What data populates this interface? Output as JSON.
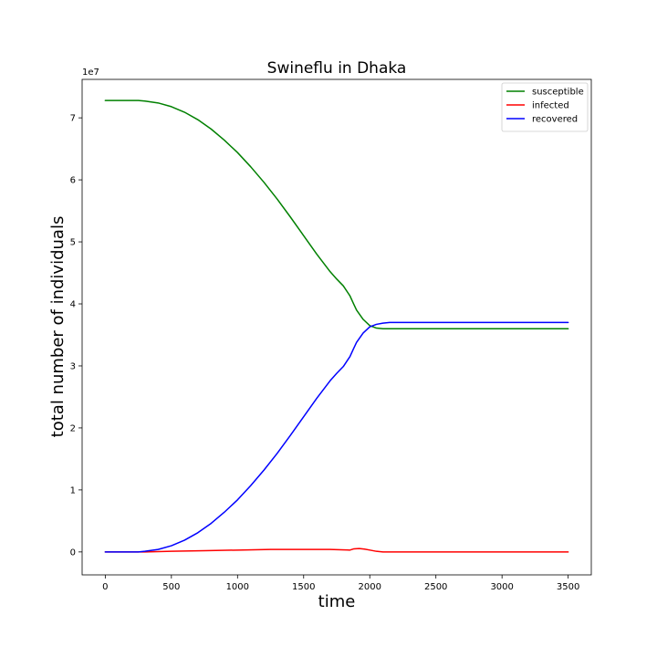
{
  "chart_data": {
    "type": "line",
    "title": "Swineflu in Dhaka",
    "xlabel": "time",
    "ylabel": "total number of individuals",
    "y_offset_label": "1e7",
    "y_scale": 10000000,
    "xlim": [
      -175,
      3675
    ],
    "ylim": [
      -0.37,
      7.62
    ],
    "x_ticks": [
      0,
      500,
      1000,
      1500,
      2000,
      2500,
      3000,
      3500
    ],
    "y_ticks": [
      0,
      1,
      2,
      3,
      4,
      5,
      6,
      7
    ],
    "grid": false,
    "legend_position": "top-right",
    "series": [
      {
        "name": "susceptible",
        "color": "#008000",
        "x": [
          0,
          100,
          200,
          250,
          300,
          400,
          500,
          600,
          700,
          800,
          900,
          1000,
          1100,
          1200,
          1300,
          1400,
          1500,
          1600,
          1700,
          1750,
          1800,
          1850,
          1880,
          1900,
          1950,
          2000,
          2050,
          2100,
          2150,
          2200,
          2300,
          2500,
          3000,
          3500
        ],
        "y": [
          7.28,
          7.28,
          7.28,
          7.28,
          7.27,
          7.24,
          7.18,
          7.09,
          6.97,
          6.82,
          6.64,
          6.44,
          6.21,
          5.96,
          5.69,
          5.4,
          5.1,
          4.8,
          4.52,
          4.4,
          4.29,
          4.13,
          3.99,
          3.9,
          3.75,
          3.65,
          3.61,
          3.6,
          3.6,
          3.6,
          3.6,
          3.6,
          3.6,
          3.6
        ]
      },
      {
        "name": "infected",
        "color": "#ff0000",
        "x": [
          0,
          200,
          300,
          500,
          750,
          1000,
          1250,
          1500,
          1600,
          1700,
          1850,
          1880,
          1920,
          1960,
          2000,
          2050,
          2100,
          2200,
          2500,
          3000,
          3500
        ],
        "y": [
          0.0,
          0.0,
          0.0,
          0.01,
          0.02,
          0.03,
          0.04,
          0.04,
          0.04,
          0.04,
          0.03,
          0.05,
          0.055,
          0.045,
          0.03,
          0.01,
          0.0,
          0.0,
          0.0,
          0.0,
          0.0
        ]
      },
      {
        "name": "recovered",
        "color": "#0000ff",
        "x": [
          0,
          100,
          200,
          250,
          300,
          400,
          500,
          600,
          700,
          800,
          900,
          1000,
          1100,
          1200,
          1300,
          1400,
          1500,
          1600,
          1700,
          1750,
          1800,
          1850,
          1880,
          1900,
          1950,
          2000,
          2050,
          2100,
          2150,
          2200,
          2300,
          2500,
          3000,
          3500
        ],
        "y": [
          0.0,
          0.0,
          0.0,
          0.0,
          0.01,
          0.04,
          0.1,
          0.19,
          0.31,
          0.46,
          0.64,
          0.84,
          1.07,
          1.32,
          1.59,
          1.88,
          2.18,
          2.48,
          2.76,
          2.88,
          2.99,
          3.15,
          3.29,
          3.38,
          3.53,
          3.63,
          3.67,
          3.69,
          3.7,
          3.7,
          3.7,
          3.7,
          3.7,
          3.7
        ]
      }
    ]
  }
}
